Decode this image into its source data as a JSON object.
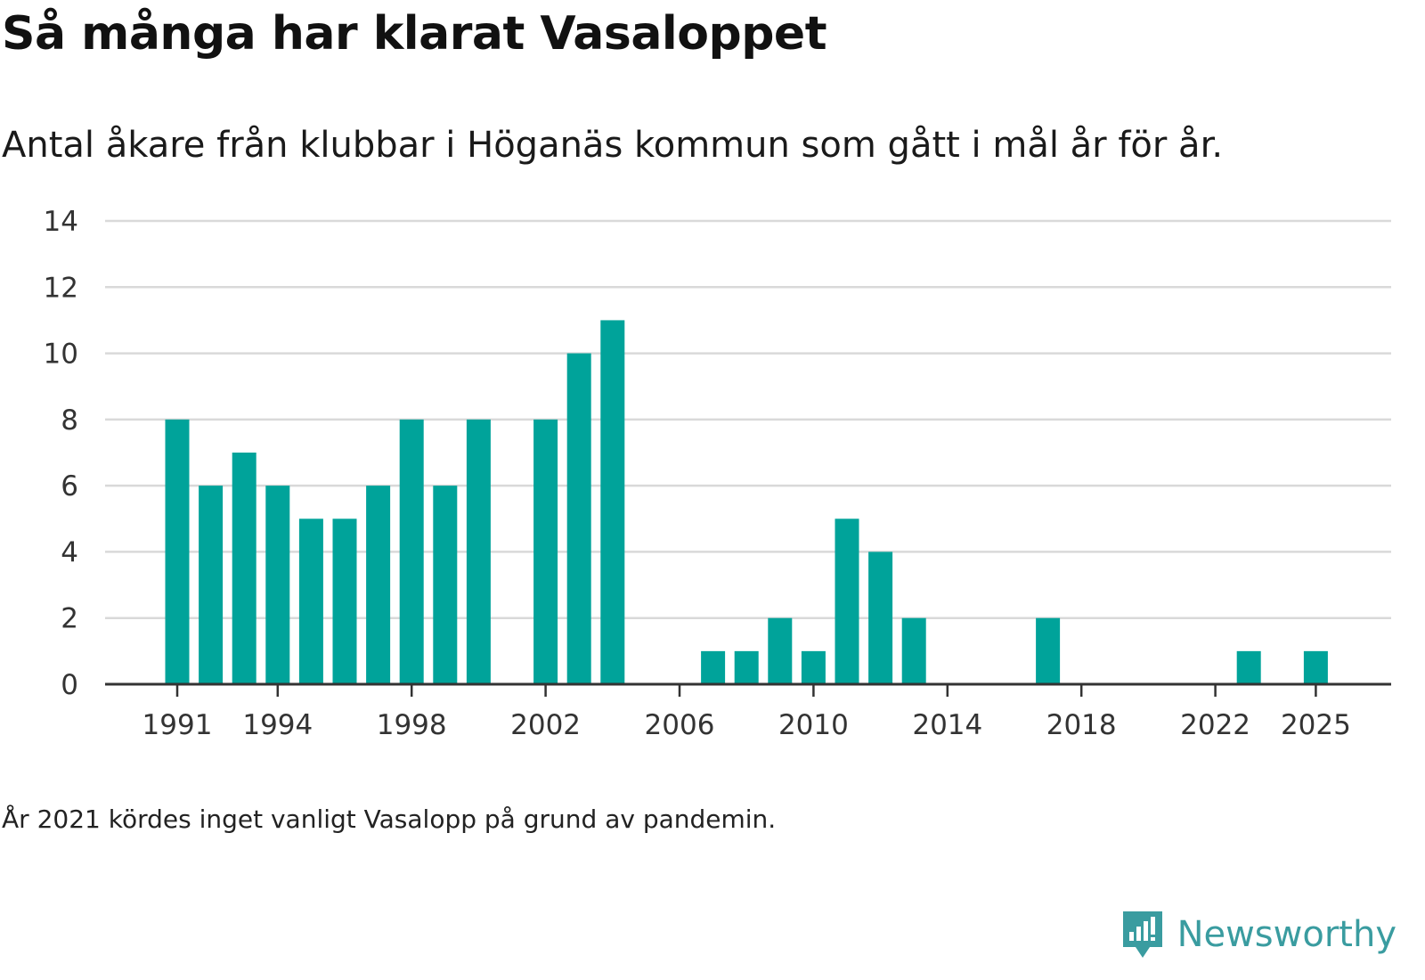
{
  "header": {
    "title": "Så många har klarat Vasaloppet",
    "subtitle": "Antal åkare från klubbar i Höganäs kommun som gått i mål år för år."
  },
  "footer": {
    "note": "År 2021 kördes inget vanligt Vasalopp på grund av pandemin.",
    "brand": "Newsworthy"
  },
  "colors": {
    "bar": "#00a39a",
    "grid": "#d9d9d9",
    "axis": "#333333",
    "brand": "#3a9ca0"
  },
  "chart_data": {
    "type": "bar",
    "title": "Så många har klarat Vasaloppet",
    "xlabel": "",
    "ylabel": "",
    "ylim": [
      0,
      14
    ],
    "yticks": [
      0,
      2,
      4,
      6,
      8,
      10,
      12,
      14
    ],
    "xticks": [
      1991,
      1994,
      1998,
      2002,
      2006,
      2010,
      2014,
      2018,
      2022,
      2025
    ],
    "grid": true,
    "categories": [
      1991,
      1992,
      1993,
      1994,
      1995,
      1996,
      1997,
      1998,
      1999,
      2000,
      2001,
      2002,
      2003,
      2004,
      2005,
      2006,
      2007,
      2008,
      2009,
      2010,
      2011,
      2012,
      2013,
      2014,
      2015,
      2016,
      2017,
      2018,
      2019,
      2020,
      2021,
      2022,
      2023,
      2024,
      2025
    ],
    "values": [
      8,
      6,
      7,
      6,
      5,
      5,
      6,
      8,
      6,
      8,
      0,
      8,
      10,
      11,
      0,
      0,
      1,
      1,
      2,
      1,
      5,
      4,
      2,
      0,
      0,
      0,
      2,
      0,
      0,
      0,
      0,
      0,
      1,
      0,
      1
    ]
  }
}
